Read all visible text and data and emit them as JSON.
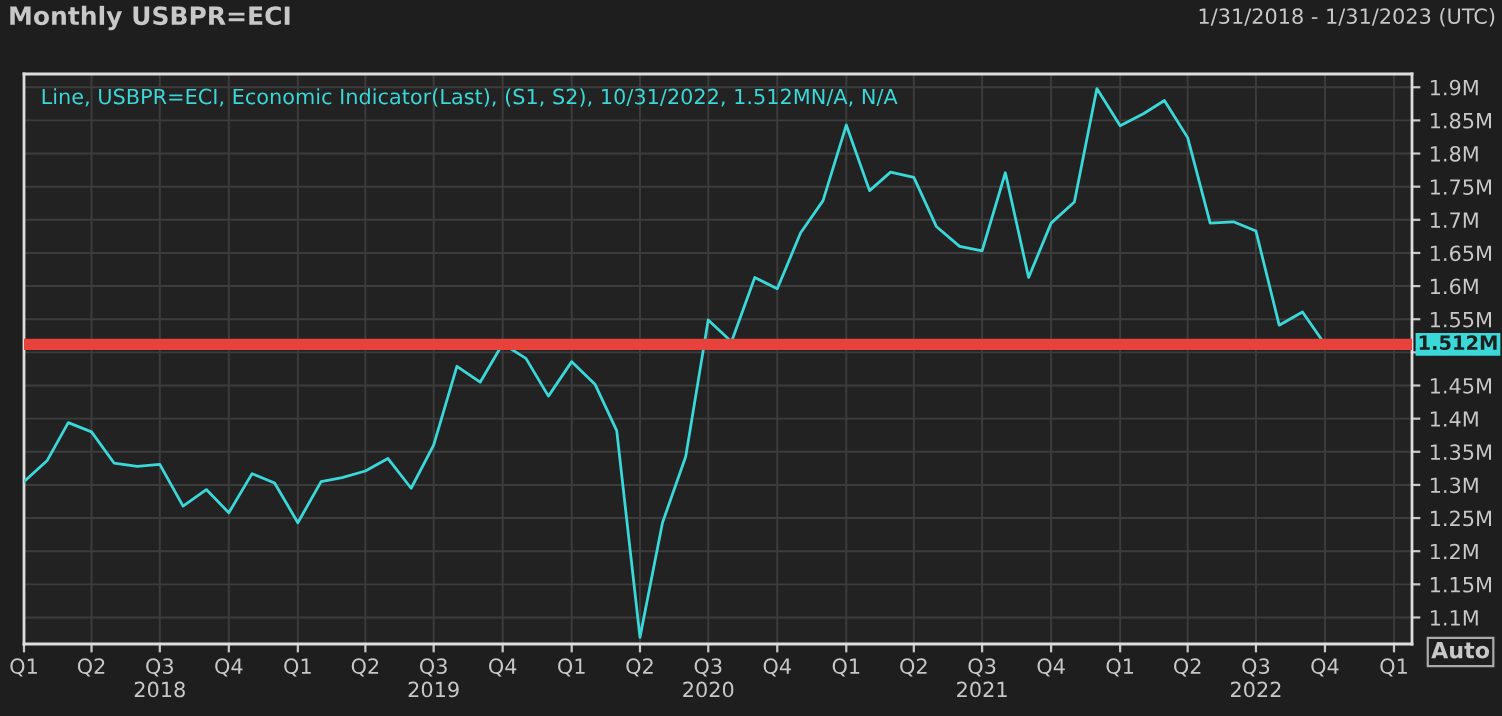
{
  "chart_data": {
    "type": "line",
    "title": "Monthly USBPR=ECI",
    "subtitle": "Line, USBPR=ECI, Economic Indicator(Last), (S1, S2), 10/31/2022, 1.512MN/A, N/A",
    "annotations": [
      "1/31/2018 - 1/31/2023 (UTC)",
      "Auto"
    ],
    "x": [
      "2018-01",
      "2018-02",
      "2018-03",
      "2018-04",
      "2018-05",
      "2018-06",
      "2018-07",
      "2018-08",
      "2018-09",
      "2018-10",
      "2018-11",
      "2018-12",
      "2019-01",
      "2019-02",
      "2019-03",
      "2019-04",
      "2019-05",
      "2019-06",
      "2019-07",
      "2019-08",
      "2019-09",
      "2019-10",
      "2019-11",
      "2019-12",
      "2020-01",
      "2020-02",
      "2020-03",
      "2020-04",
      "2020-05",
      "2020-06",
      "2020-07",
      "2020-08",
      "2020-09",
      "2020-10",
      "2020-11",
      "2020-12",
      "2021-01",
      "2021-02",
      "2021-03",
      "2021-04",
      "2021-05",
      "2021-06",
      "2021-07",
      "2021-08",
      "2021-09",
      "2021-10",
      "2021-11",
      "2021-12",
      "2022-01",
      "2022-02",
      "2022-03",
      "2022-04",
      "2022-05",
      "2022-06",
      "2022-07",
      "2022-08",
      "2022-09",
      "2022-10"
    ],
    "series": [
      {
        "color": "#3ad8d8",
        "values": [
          1.305,
          1.337,
          1.394,
          1.38,
          1.333,
          1.328,
          1.331,
          1.268,
          1.293,
          1.258,
          1.317,
          1.303,
          1.243,
          1.305,
          1.311,
          1.321,
          1.34,
          1.295,
          1.36,
          1.479,
          1.455,
          1.513,
          1.491,
          1.434,
          1.486,
          1.452,
          1.382,
          1.07,
          1.243,
          1.343,
          1.549,
          1.516,
          1.613,
          1.596,
          1.68,
          1.729,
          1.843,
          1.744,
          1.772,
          1.764,
          1.69,
          1.66,
          1.653,
          1.771,
          1.613,
          1.695,
          1.727,
          1.898,
          1.842,
          1.86,
          1.88,
          1.824,
          1.695,
          1.697,
          1.683,
          1.541,
          1.561,
          1.512
        ]
      }
    ],
    "xlim": [
      "2018-01-01",
      "2023-01-25"
    ],
    "xticks": [
      {
        "value": "2018-01-01",
        "label": "Q1"
      },
      {
        "value": "2018-04-01",
        "label": "Q2"
      },
      {
        "value": "2018-07-01",
        "label": "Q3\n2018"
      },
      {
        "value": "2018-10-01",
        "label": "Q4"
      },
      {
        "value": "2019-01-01",
        "label": "Q1"
      },
      {
        "value": "2019-04-01",
        "label": "Q2"
      },
      {
        "value": "2019-07-01",
        "label": "Q3\n2019"
      },
      {
        "value": "2019-10-01",
        "label": "Q4"
      },
      {
        "value": "2020-01-01",
        "label": "Q1"
      },
      {
        "value": "2020-04-01",
        "label": "Q2"
      },
      {
        "value": "2020-07-01",
        "label": "Q3\n2020"
      },
      {
        "value": "2020-10-01",
        "label": "Q4"
      },
      {
        "value": "2021-01-01",
        "label": "Q1"
      },
      {
        "value": "2021-04-01",
        "label": "Q2"
      },
      {
        "value": "2021-07-01",
        "label": "Q3\n2021"
      },
      {
        "value": "2021-10-01",
        "label": "Q4"
      },
      {
        "value": "2022-01-01",
        "label": "Q1"
      },
      {
        "value": "2022-04-01",
        "label": "Q2"
      },
      {
        "value": "2022-07-01",
        "label": "Q3\n2022"
      },
      {
        "value": "2022-10-01",
        "label": "Q4"
      },
      {
        "value": "2023-01-01",
        "label": "Q1"
      }
    ],
    "ylim": [
      1.06,
      1.92
    ],
    "yticks": [
      {
        "value": 1.1,
        "label": "1.1M"
      },
      {
        "value": 1.15,
        "label": "1.15M"
      },
      {
        "value": 1.2,
        "label": "1.2M"
      },
      {
        "value": 1.25,
        "label": "1.25M"
      },
      {
        "value": 1.3,
        "label": "1.3M"
      },
      {
        "value": 1.35,
        "label": "1.35M"
      },
      {
        "value": 1.4,
        "label": "1.4M"
      },
      {
        "value": 1.45,
        "label": "1.45M"
      },
      {
        "value": 1.5,
        "label": null
      },
      {
        "value": 1.55,
        "label": "1.55M"
      },
      {
        "value": 1.6,
        "label": "1.6M"
      },
      {
        "value": 1.65,
        "label": "1.65M"
      },
      {
        "value": 1.7,
        "label": "1.7M"
      },
      {
        "value": 1.75,
        "label": "1.75M"
      },
      {
        "value": 1.8,
        "label": "1.8M"
      },
      {
        "value": 1.85,
        "label": "1.85M"
      },
      {
        "value": 1.9,
        "label": "1.9M"
      }
    ],
    "ref_lines": [
      {
        "axis": "y",
        "value": 1.512,
        "label": "1.512M",
        "color": "#e8423c"
      }
    ],
    "grid": true
  }
}
